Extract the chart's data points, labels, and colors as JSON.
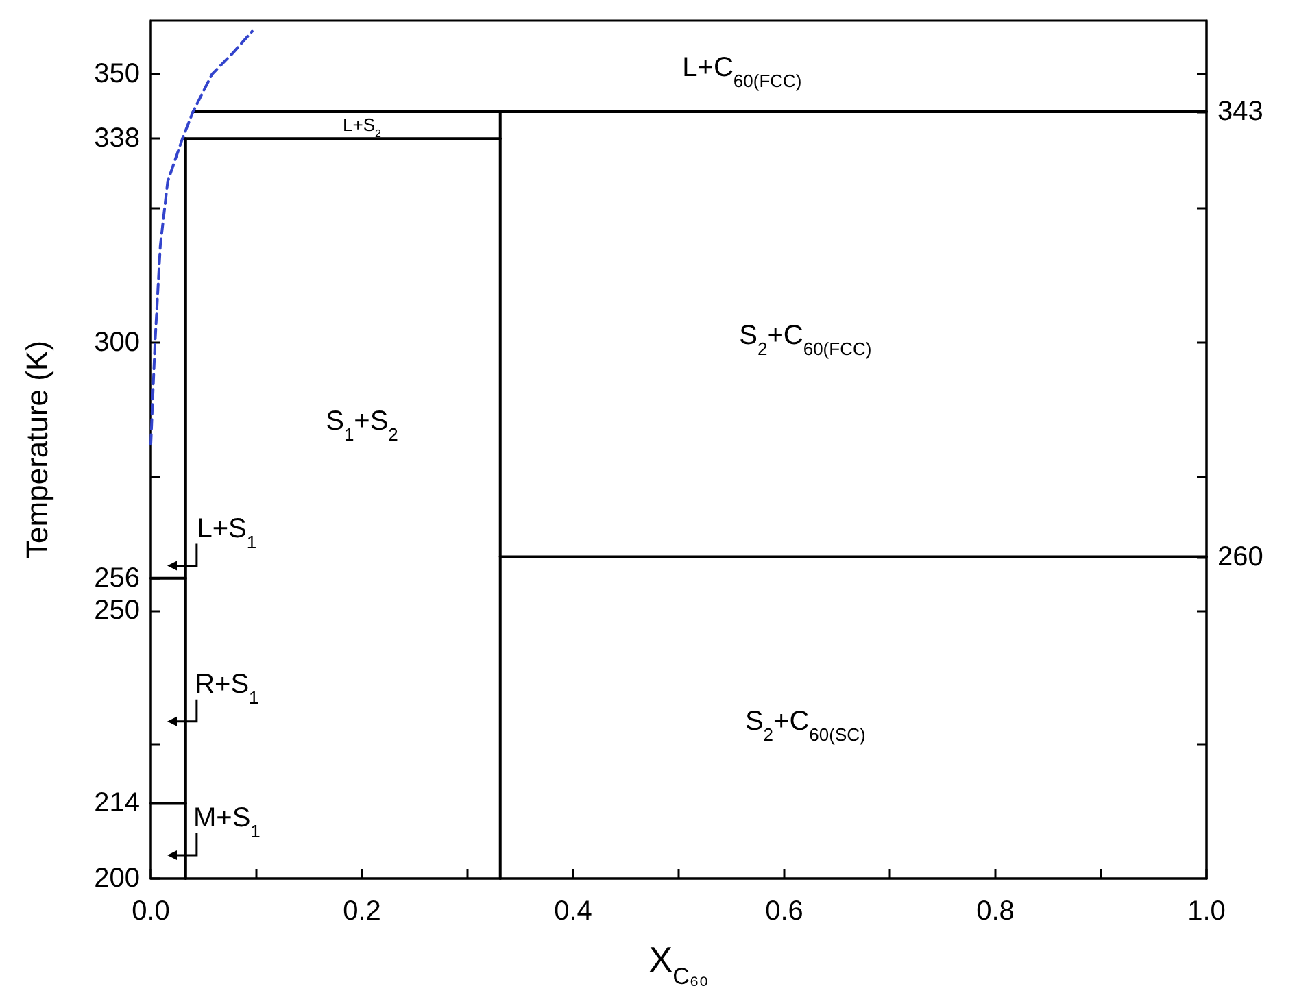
{
  "chart_data": {
    "type": "line",
    "xlabel": "X$_{C₆₀}$",
    "ylabel": "Temperature (K)",
    "xlim": [
      0,
      1.0
    ],
    "xticks": [
      {
        "value": 0,
        "label": "0.0"
      },
      {
        "value": 0.1,
        "label": null
      },
      0.2,
      {
        "value": 0.3,
        "label": null
      },
      0.4,
      {
        "value": 0.5,
        "label": null
      },
      0.6,
      {
        "value": 0.7,
        "label": null
      },
      0.8,
      {
        "value": 0.9,
        "label": null
      },
      {
        "value": 1.0,
        "label": "1.0"
      }
    ],
    "ylim": [
      200,
      360
    ],
    "yticks": [
      200,
      214,
      {
        "value": 225,
        "label": null
      },
      250,
      256,
      {
        "value": 275,
        "label": null
      },
      300,
      {
        "value": 325,
        "label": null
      },
      338,
      350
    ],
    "y2lim": [
      200,
      360
    ],
    "y2ticks": [
      {
        "value": 225,
        "label": null
      },
      {
        "value": 250,
        "label": null
      },
      260,
      {
        "value": 275,
        "label": null
      },
      {
        "value": 300,
        "label": null
      },
      {
        "value": 325,
        "label": null
      },
      343,
      {
        "value": 350,
        "label": null
      }
    ],
    "marker": "none",
    "grid": false,
    "series": [
      {
        "color": "#000000",
        "x": [
          0.04,
          1.0
        ],
        "values": [
          343,
          343
        ]
      },
      {
        "color": "#000000",
        "x": [
          0.331,
          0.331
        ],
        "values": [
          200,
          343
        ]
      },
      {
        "color": "#000000",
        "x": [
          0.03,
          0.331
        ],
        "values": [
          338,
          338
        ]
      },
      {
        "color": "#000000",
        "x": [
          0.033,
          0.033
        ],
        "values": [
          200,
          338
        ]
      },
      {
        "color": "#000000",
        "x": [
          0.331,
          1.0
        ],
        "values": [
          260,
          260
        ]
      },
      {
        "color": "#000000",
        "x": [
          0,
          0.033
        ],
        "values": [
          256,
          256
        ]
      },
      {
        "color": "#000000",
        "x": [
          0,
          0.033
        ],
        "values": [
          214,
          214
        ]
      },
      {
        "color": "#3344cc",
        "line_style": "dashed",
        "x": [
          0,
          0.004,
          0.009,
          0.016,
          0.03,
          0.04,
          0.058,
          0.078,
          0.096
        ],
        "values": [
          281,
          300,
          318,
          330,
          338,
          343,
          350,
          354,
          358
        ]
      }
    ],
    "annotations": [
      "L+C$_{60(FCC)}$",
      "L+S$_{2}$",
      "S$_{1}$+S$_{2}$",
      "S$_{2}$+C$_{60(FCC)}$",
      "S$_{2}$+C$_{60(SC)}$",
      "L+S$_{1}$",
      "R+S$_{1}$",
      "M+S$_{1}$"
    ]
  }
}
